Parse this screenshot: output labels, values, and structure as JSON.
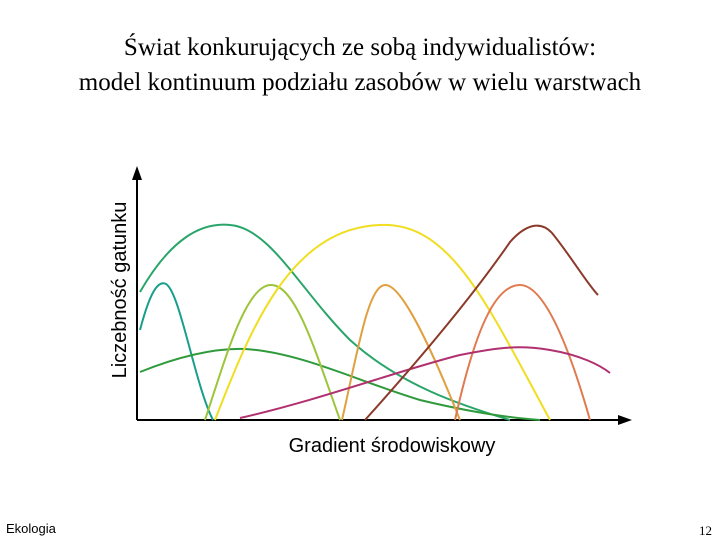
{
  "title": [
    "Świat konkurujących ze sobą indywidualistów:",
    "model kontinuum podziału zasobów w wielu warstwach"
  ],
  "y_axis_label": "Liczebność gatunku",
  "x_axis_label": "Gradient środowiskowy",
  "footer": "Ekologia",
  "page_number": "12"
}
